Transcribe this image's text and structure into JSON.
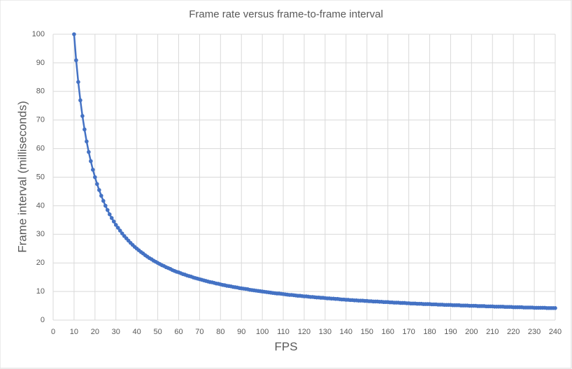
{
  "chart_data": {
    "type": "line",
    "title": "Frame rate versus frame-to-frame interval",
    "x_label": "FPS",
    "y_label": "Frame interval (milliseconds)",
    "xlim": [
      0,
      240
    ],
    "xticks": [
      0,
      10,
      20,
      30,
      40,
      50,
      60,
      70,
      80,
      90,
      100,
      110,
      120,
      130,
      140,
      150,
      160,
      170,
      180,
      190,
      200,
      210,
      220,
      230,
      240
    ],
    "ylim": [
      0,
      100
    ],
    "yticks": [
      0,
      10,
      20,
      30,
      40,
      50,
      60,
      70,
      80,
      90,
      100
    ],
    "grid": true,
    "x": [
      10,
      11,
      12,
      13,
      14,
      15,
      16,
      17,
      18,
      19,
      20,
      21,
      22,
      23,
      24,
      25,
      26,
      27,
      28,
      29,
      30,
      31,
      32,
      33,
      34,
      35,
      36,
      37,
      38,
      39,
      40,
      41,
      42,
      43,
      44,
      45,
      46,
      47,
      48,
      49,
      50,
      51,
      52,
      53,
      54,
      55,
      56,
      57,
      58,
      59,
      60,
      61,
      62,
      63,
      64,
      65,
      66,
      67,
      68,
      69,
      70,
      71,
      72,
      73,
      74,
      75,
      76,
      77,
      78,
      79,
      80,
      81,
      82,
      83,
      84,
      85,
      86,
      87,
      88,
      89,
      90,
      91,
      92,
      93,
      94,
      95,
      96,
      97,
      98,
      99,
      100,
      101,
      102,
      103,
      104,
      105,
      106,
      107,
      108,
      109,
      110,
      111,
      112,
      113,
      114,
      115,
      116,
      117,
      118,
      119,
      120,
      121,
      122,
      123,
      124,
      125,
      126,
      127,
      128,
      129,
      130,
      131,
      132,
      133,
      134,
      135,
      136,
      137,
      138,
      139,
      140,
      141,
      142,
      143,
      144,
      145,
      146,
      147,
      148,
      149,
      150,
      151,
      152,
      153,
      154,
      155,
      156,
      157,
      158,
      159,
      160,
      161,
      162,
      163,
      164,
      165,
      166,
      167,
      168,
      169,
      170,
      171,
      172,
      173,
      174,
      175,
      176,
      177,
      178,
      179,
      180,
      181,
      182,
      183,
      184,
      185,
      186,
      187,
      188,
      189,
      190,
      191,
      192,
      193,
      194,
      195,
      196,
      197,
      198,
      199,
      200,
      201,
      202,
      203,
      204,
      205,
      206,
      207,
      208,
      209,
      210,
      211,
      212,
      213,
      214,
      215,
      216,
      217,
      218,
      219,
      220,
      221,
      222,
      223,
      224,
      225,
      226,
      227,
      228,
      229,
      230,
      231,
      232,
      233,
      234,
      235,
      236,
      237,
      238,
      239,
      240
    ],
    "series": [
      {
        "color": "#4472c4",
        "values": [
          100,
          90.9,
          83.3,
          76.9,
          71.4,
          66.7,
          62.5,
          58.8,
          55.6,
          52.6,
          50,
          47.6,
          45.5,
          43.5,
          41.7,
          40,
          38.5,
          37,
          35.7,
          34.5,
          33.3,
          32.3,
          31.3,
          30.3,
          29.4,
          28.6,
          27.8,
          27,
          26.3,
          25.6,
          25,
          24.4,
          23.8,
          23.3,
          22.7,
          22.2,
          21.7,
          21.3,
          20.8,
          20.4,
          20,
          19.6,
          19.2,
          18.9,
          18.5,
          18.2,
          17.9,
          17.5,
          17.2,
          16.9,
          16.7,
          16.4,
          16.1,
          15.9,
          15.6,
          15.4,
          15.2,
          14.9,
          14.7,
          14.5,
          14.3,
          14.1,
          13.9,
          13.7,
          13.5,
          13.3,
          13.2,
          13,
          12.8,
          12.7,
          12.5,
          12.3,
          12.2,
          12,
          11.9,
          11.8,
          11.6,
          11.5,
          11.4,
          11.2,
          11.1,
          11,
          10.9,
          10.8,
          10.6,
          10.5,
          10.4,
          10.3,
          10.2,
          10.1,
          10,
          9.9,
          9.8,
          9.7,
          9.6,
          9.5,
          9.4,
          9.3,
          9.3,
          9.2,
          9.1,
          9,
          8.9,
          8.8,
          8.8,
          8.7,
          8.6,
          8.5,
          8.5,
          8.4,
          8.3,
          8.3,
          8.2,
          8.1,
          8.1,
          8,
          7.9,
          7.9,
          7.8,
          7.8,
          7.7,
          7.6,
          7.6,
          7.5,
          7.5,
          7.4,
          7.4,
          7.3,
          7.2,
          7.2,
          7.1,
          7.1,
          7,
          7,
          6.9,
          6.9,
          6.8,
          6.8,
          6.8,
          6.7,
          6.7,
          6.6,
          6.6,
          6.5,
          6.5,
          6.5,
          6.4,
          6.4,
          6.3,
          6.3,
          6.3,
          6.2,
          6.2,
          6.1,
          6.1,
          6.1,
          6,
          6,
          6,
          5.9,
          5.9,
          5.8,
          5.8,
          5.8,
          5.7,
          5.7,
          5.7,
          5.6,
          5.6,
          5.6,
          5.6,
          5.5,
          5.5,
          5.5,
          5.4,
          5.4,
          5.4,
          5.3,
          5.3,
          5.3,
          5.3,
          5.2,
          5.2,
          5.2,
          5.2,
          5.1,
          5.1,
          5.1,
          5.1,
          5,
          5,
          5,
          5,
          4.9,
          4.9,
          4.9,
          4.9,
          4.8,
          4.8,
          4.8,
          4.8,
          4.7,
          4.7,
          4.7,
          4.7,
          4.7,
          4.6,
          4.6,
          4.6,
          4.6,
          4.5,
          4.5,
          4.5,
          4.5,
          4.5,
          4.4,
          4.4,
          4.4,
          4.4,
          4.4,
          4.3,
          4.3,
          4.3,
          4.3,
          4.3,
          4.3,
          4.2,
          4.2,
          4.2,
          4.2,
          4.2
        ]
      }
    ]
  }
}
